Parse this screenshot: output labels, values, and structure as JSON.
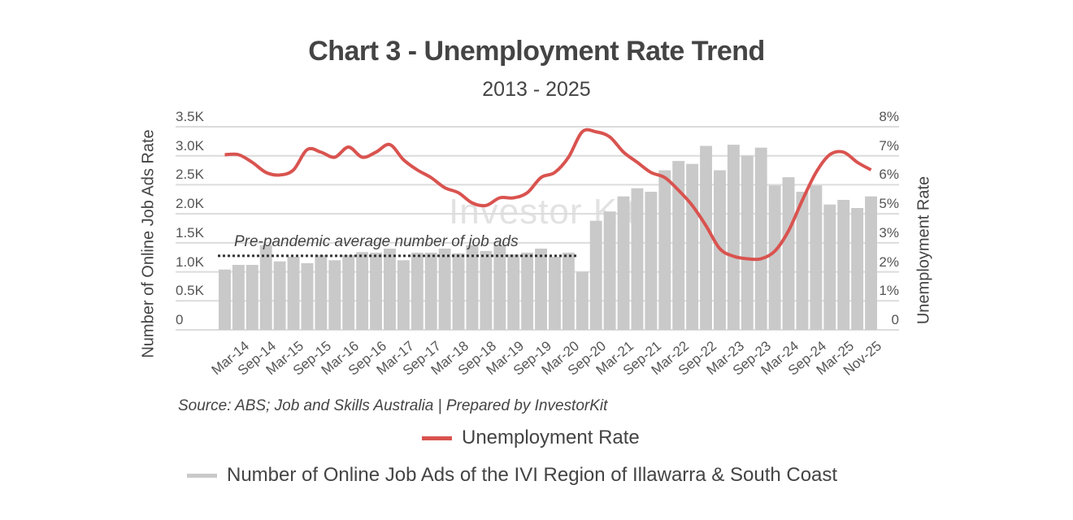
{
  "title": "Chart 3 - Unemployment Rate Trend",
  "subtitle": "2013 - 2025",
  "y_axis_left": {
    "label": "Number of Online Job Ads Rate",
    "ticks": [
      "3.5K",
      "3.0K",
      "2.5K",
      "2.0K",
      "1.5K",
      "1.0K",
      "0.5K",
      "0"
    ]
  },
  "y_axis_right": {
    "label": "Unemployment Rate",
    "ticks": [
      "8%",
      "7%",
      "6%",
      "5%",
      "3%",
      "2%",
      "1%",
      "0"
    ]
  },
  "annotation": "Pre-pandemic average number of job ads",
  "source": "Source: ABS; Job and Skills Australia | Prepared by InvestorKit",
  "watermark": "Investor Kit",
  "legend": {
    "line_label": "Unemployment Rate",
    "bar_label": "Number of Online Job Ads of the IVI Region of Illawarra & South Coast",
    "line_color": "#d9534f",
    "bar_color": "#c9c9c9"
  },
  "chart_data": {
    "type": "bar+line",
    "title": "Chart 3 - Unemployment Rate Trend",
    "subtitle": "2013 - 2025",
    "xlabel": "",
    "ylabel_left": "Number of Online Job Ads Rate",
    "ylabel_right": "Unemployment Rate",
    "ylim_left": [
      0,
      3500
    ],
    "ylim_right": [
      0,
      8
    ],
    "grid": true,
    "legend_position": "bottom",
    "x_tick_labels": [
      "Mar-14",
      "Sep-14",
      "Mar-15",
      "Sep-15",
      "Mar-16",
      "Sep-16",
      "Mar-17",
      "Sep-17",
      "Mar-18",
      "Sep-18",
      "Mar-19",
      "Sep-19",
      "Mar-20",
      "Sep-20",
      "Mar-21",
      "Sep-21",
      "Mar-22",
      "Sep-22",
      "Mar-23",
      "Sep-23",
      "Mar-24",
      "Sep-24",
      "Mar-25",
      "Nov-25"
    ],
    "reference_line": {
      "label": "Pre-pandemic average number of job ads",
      "value": 1275,
      "axis": "left",
      "style": "dotted"
    },
    "series": [
      {
        "name": "Number of Online Job Ads of the IVI Region of Illawarra & South Coast",
        "type": "bar",
        "axis": "left",
        "color": "#c9c9c9",
        "values": [
          1040,
          1120,
          1120,
          1460,
          1180,
          1260,
          1150,
          1290,
          1200,
          1290,
          1340,
          1330,
          1400,
          1200,
          1330,
          1330,
          1400,
          1320,
          1460,
          1360,
          1460,
          1300,
          1330,
          1400,
          1260,
          1330,
          1000,
          1880,
          2040,
          2300,
          2440,
          2380,
          2750,
          2910,
          2860,
          3170,
          2750,
          3190,
          3000,
          3140,
          2490,
          2630,
          2380,
          2490,
          2160,
          2240,
          2100,
          2300
        ]
      },
      {
        "name": "Unemployment Rate",
        "type": "line",
        "axis": "right",
        "color": "#d9534f",
        "values": [
          6.9,
          6.9,
          6.6,
          6.2,
          6.1,
          6.3,
          7.1,
          7.0,
          6.8,
          7.2,
          6.8,
          7.0,
          7.3,
          6.7,
          6.3,
          6.0,
          5.6,
          5.4,
          5.0,
          4.9,
          5.2,
          5.2,
          5.4,
          6.0,
          6.2,
          6.8,
          7.8,
          7.8,
          7.6,
          7.0,
          6.6,
          6.2,
          6.0,
          5.5,
          4.9,
          4.1,
          3.2,
          2.9,
          2.8,
          2.8,
          3.1,
          3.9,
          5.1,
          6.2,
          6.9,
          7.0,
          6.6,
          6.3
        ]
      }
    ]
  }
}
